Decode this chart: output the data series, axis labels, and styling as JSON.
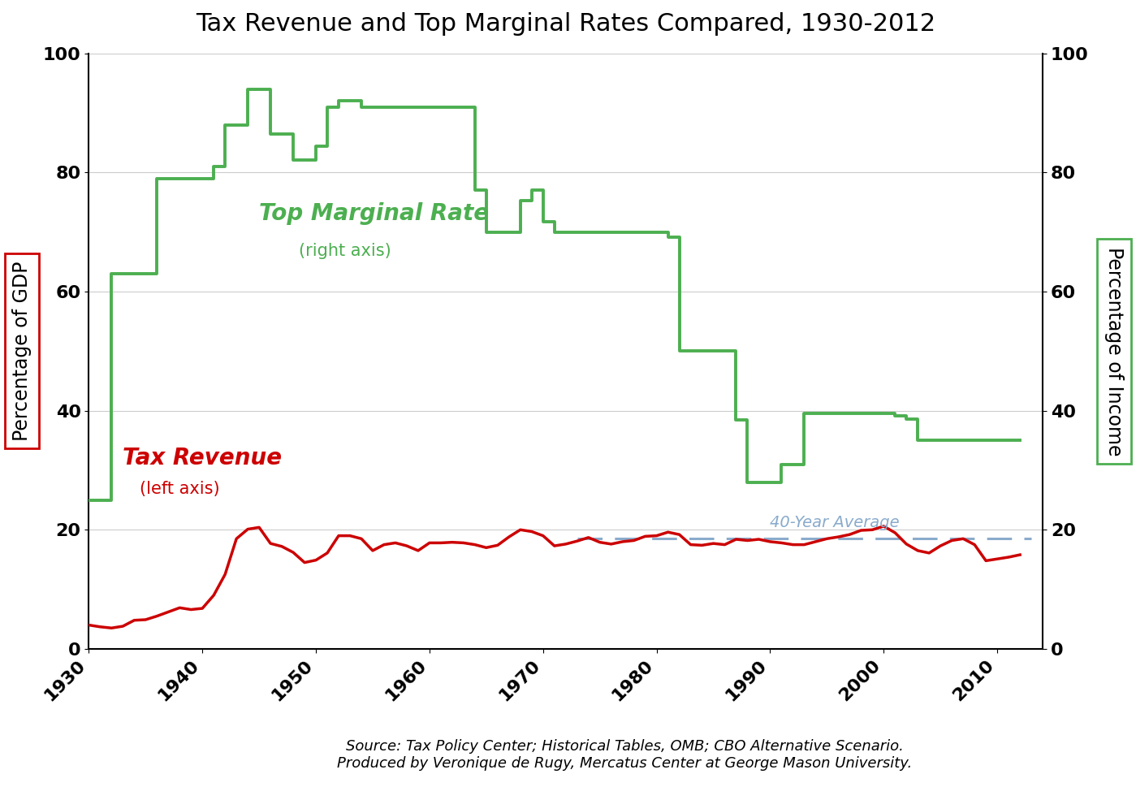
{
  "title": "Tax Revenue and Top Marginal Rates Compared, 1930-2012",
  "ylabel_left": "Percentage of GDP",
  "ylabel_right": "Percentage of Income",
  "ylim_left": [
    0,
    100
  ],
  "ylim_right": [
    0,
    100
  ],
  "xlim": [
    1930,
    2014
  ],
  "xticks": [
    1930,
    1940,
    1950,
    1960,
    1970,
    1980,
    1990,
    2000,
    2010
  ],
  "yticks": [
    0,
    20,
    40,
    60,
    80,
    100
  ],
  "source_text": "Source: Tax Policy Center; Historical Tables, OMB; CBO Alternative Scenario.\nProduced by Veronique de Rugy, Mercatus Center at George Mason University.",
  "avg_label": "40-Year Average",
  "avg_value": 18.5,
  "avg_x_start": 1973,
  "avg_x_end": 2013,
  "label_revenue": "Tax Revenue",
  "label_revenue_sub": "(left axis)",
  "label_marginal": "Top Marginal Rate",
  "label_marginal_sub": "(right axis)",
  "color_revenue": "#CC0000",
  "color_marginal": "#4CAF50",
  "color_avg": "#8AABCC",
  "background": "#FFFFFF",
  "tax_revenue": {
    "years": [
      1930,
      1931,
      1932,
      1933,
      1934,
      1935,
      1936,
      1937,
      1938,
      1939,
      1940,
      1941,
      1942,
      1943,
      1944,
      1945,
      1946,
      1947,
      1948,
      1949,
      1950,
      1951,
      1952,
      1953,
      1954,
      1955,
      1956,
      1957,
      1958,
      1959,
      1960,
      1961,
      1962,
      1963,
      1964,
      1965,
      1966,
      1967,
      1968,
      1969,
      1970,
      1971,
      1972,
      1973,
      1974,
      1975,
      1976,
      1977,
      1978,
      1979,
      1980,
      1981,
      1982,
      1983,
      1984,
      1985,
      1986,
      1987,
      1988,
      1989,
      1990,
      1991,
      1992,
      1993,
      1994,
      1995,
      1996,
      1997,
      1998,
      1999,
      2000,
      2001,
      2002,
      2003,
      2004,
      2005,
      2006,
      2007,
      2008,
      2009,
      2010,
      2011,
      2012
    ],
    "values": [
      4.0,
      3.7,
      3.5,
      3.8,
      4.8,
      4.9,
      5.5,
      6.2,
      6.9,
      6.6,
      6.8,
      9.0,
      12.5,
      18.5,
      20.1,
      20.4,
      17.7,
      17.2,
      16.2,
      14.5,
      14.9,
      16.1,
      19.0,
      19.0,
      18.5,
      16.5,
      17.5,
      17.8,
      17.3,
      16.5,
      17.8,
      17.8,
      17.9,
      17.8,
      17.5,
      17.0,
      17.4,
      18.8,
      20.0,
      19.7,
      19.0,
      17.3,
      17.6,
      18.1,
      18.7,
      17.9,
      17.6,
      18.0,
      18.2,
      18.9,
      19.0,
      19.6,
      19.2,
      17.5,
      17.4,
      17.7,
      17.5,
      18.4,
      18.2,
      18.4,
      18.0,
      17.8,
      17.5,
      17.5,
      18.0,
      18.5,
      18.8,
      19.2,
      19.9,
      20.0,
      20.6,
      19.5,
      17.6,
      16.5,
      16.1,
      17.3,
      18.2,
      18.5,
      17.5,
      14.8,
      15.1,
      15.4,
      15.8
    ]
  },
  "top_marginal": {
    "years": [
      1930,
      1932,
      1933,
      1936,
      1940,
      1941,
      1942,
      1944,
      1946,
      1948,
      1950,
      1951,
      1952,
      1954,
      1964,
      1965,
      1968,
      1969,
      1971,
      1976,
      1981,
      1982,
      1983,
      1987,
      1988,
      1991,
      1993,
      2001,
      2003,
      2013
    ],
    "values": [
      25,
      63,
      63,
      79,
      79,
      81,
      88,
      94,
      86.5,
      82.13,
      84.36,
      91,
      92,
      91,
      77,
      70,
      75.25,
      77,
      70,
      70,
      69.125,
      50,
      50,
      38.5,
      28,
      31,
      39.6,
      39.1,
      35,
      39.6
    ]
  },
  "top_marginal_step": {
    "years": [
      1930,
      1931,
      1932,
      1933,
      1934,
      1935,
      1936,
      1937,
      1938,
      1939,
      1940,
      1941,
      1942,
      1943,
      1944,
      1945,
      1946,
      1947,
      1948,
      1949,
      1950,
      1951,
      1952,
      1953,
      1954,
      1955,
      1956,
      1957,
      1958,
      1959,
      1960,
      1961,
      1962,
      1963,
      1964,
      1965,
      1966,
      1967,
      1968,
      1969,
      1970,
      1971,
      1972,
      1973,
      1974,
      1975,
      1976,
      1977,
      1978,
      1979,
      1980,
      1981,
      1982,
      1983,
      1984,
      1985,
      1986,
      1987,
      1988,
      1989,
      1990,
      1991,
      1992,
      1993,
      1994,
      1995,
      1996,
      1997,
      1998,
      1999,
      2000,
      2001,
      2002,
      2003,
      2004,
      2005,
      2006,
      2007,
      2008,
      2009,
      2010,
      2011,
      2012
    ],
    "values": [
      25,
      25,
      63,
      63,
      63,
      63,
      79,
      79,
      79,
      79,
      79,
      81,
      88,
      88,
      94,
      94,
      86.45,
      86.45,
      82.13,
      82.13,
      84.36,
      91,
      92,
      92,
      91,
      91,
      91,
      91,
      91,
      91,
      91,
      91,
      91,
      91,
      77,
      70,
      70,
      70,
      75.25,
      77,
      71.75,
      70,
      70,
      70,
      70,
      70,
      70,
      70,
      70,
      70,
      70,
      69.125,
      50,
      50,
      50,
      50,
      50,
      38.5,
      28,
      28,
      28,
      31,
      31,
      39.6,
      39.6,
      39.6,
      39.6,
      39.6,
      39.6,
      39.6,
      39.6,
      39.1,
      38.6,
      35,
      35,
      35,
      35,
      35,
      35,
      35,
      35,
      35,
      35
    ]
  }
}
